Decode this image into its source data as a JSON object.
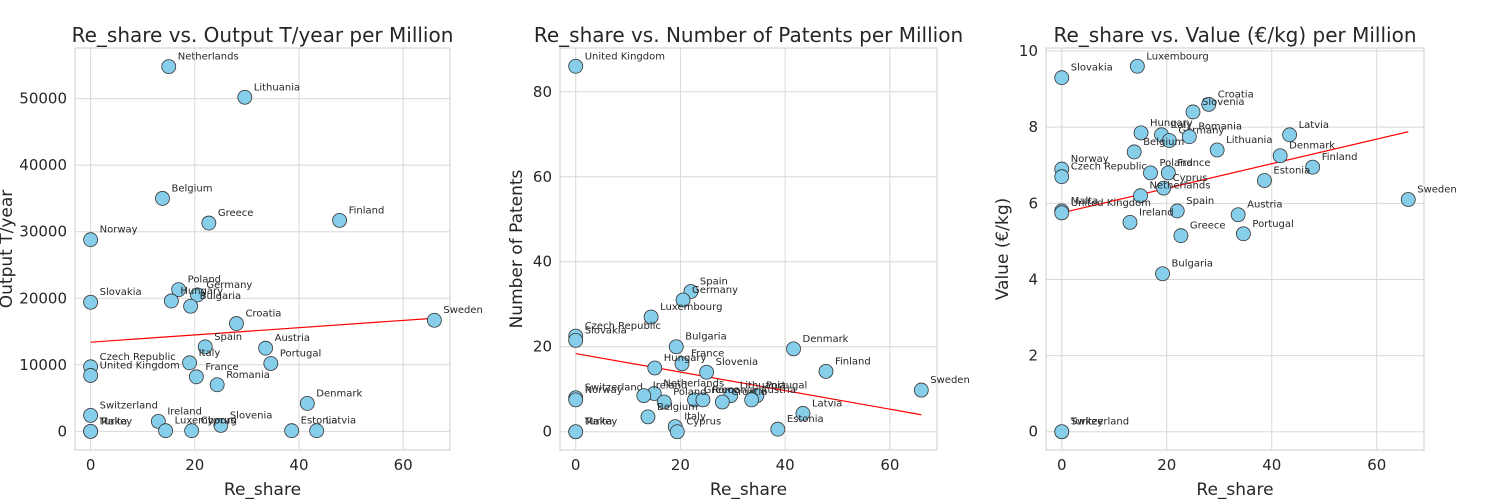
{
  "chart_data": [
    {
      "type": "scatter",
      "title": "Re_share vs. Output T/year per Million",
      "xlabel": "Re_share",
      "ylabel": "Output T/year",
      "xlim": [
        -3,
        69
      ],
      "ylim": [
        -2800,
        57600
      ],
      "xticks": [
        "0",
        "20",
        "40",
        "60"
      ],
      "xtick_values": [
        0,
        20,
        40,
        60
      ],
      "yticks": [
        "0",
        "10000",
        "20000",
        "30000",
        "40000",
        "50000"
      ],
      "ytick_values": [
        0,
        10000,
        20000,
        30000,
        40000,
        50000
      ],
      "grid": true,
      "marker_color": "#87ceeb",
      "trend_color": "#ff0000",
      "trend": [
        {
          "x": 0,
          "y": 13400
        },
        {
          "x": 66,
          "y": 17000
        }
      ],
      "points": [
        {
          "label": "Netherlands",
          "x": 15,
          "y": 54800
        },
        {
          "label": "Lithuania",
          "x": 29.6,
          "y": 50200
        },
        {
          "label": "Belgium",
          "x": 13.8,
          "y": 35000
        },
        {
          "label": "Greece",
          "x": 22.7,
          "y": 31300
        },
        {
          "label": "Finland",
          "x": 47.8,
          "y": 31700
        },
        {
          "label": "Norway",
          "x": 0,
          "y": 28800
        },
        {
          "label": "Slovakia",
          "x": 0,
          "y": 19400
        },
        {
          "label": "Poland",
          "x": 16.9,
          "y": 21300
        },
        {
          "label": "Germany",
          "x": 20.5,
          "y": 20500
        },
        {
          "label": "Hungary",
          "x": 15.5,
          "y": 19600
        },
        {
          "label": "Bulgaria",
          "x": 19.2,
          "y": 18800
        },
        {
          "label": "Sweden",
          "x": 66,
          "y": 16700
        },
        {
          "label": "Croatia",
          "x": 28,
          "y": 16200
        },
        {
          "label": "Spain",
          "x": 22,
          "y": 12700
        },
        {
          "label": "Austria",
          "x": 33.6,
          "y": 12500
        },
        {
          "label": "Italy",
          "x": 19,
          "y": 10300
        },
        {
          "label": "Portugal",
          "x": 34.6,
          "y": 10200
        },
        {
          "label": "Czech Republic",
          "x": 0,
          "y": 9700
        },
        {
          "label": "United Kingdom",
          "x": 0,
          "y": 8400
        },
        {
          "label": "France",
          "x": 20.3,
          "y": 8200
        },
        {
          "label": "Romania",
          "x": 24.3,
          "y": 7000
        },
        {
          "label": "Denmark",
          "x": 41.6,
          "y": 4200
        },
        {
          "label": "Switzerland",
          "x": 0,
          "y": 2400
        },
        {
          "label": "Ireland",
          "x": 13,
          "y": 1500
        },
        {
          "label": "Slovenia",
          "x": 25,
          "y": 900
        },
        {
          "label": "Luxembourg",
          "x": 14.4,
          "y": 100
        },
        {
          "label": "Cyprus",
          "x": 19.4,
          "y": 100
        },
        {
          "label": "Estonia",
          "x": 38.6,
          "y": 100
        },
        {
          "label": "Latvia",
          "x": 43.4,
          "y": 100
        },
        {
          "label": "Malta",
          "x": 0,
          "y": 0
        },
        {
          "label": "Turkey",
          "x": 0,
          "y": 0
        }
      ]
    },
    {
      "type": "scatter",
      "title": "Re_share vs. Number of Patents per Million",
      "xlabel": "Re_share",
      "ylabel": "Number of Patents",
      "xlim": [
        -3,
        69
      ],
      "ylim": [
        -4.3,
        90.3
      ],
      "xticks": [
        "0",
        "20",
        "40",
        "60"
      ],
      "xtick_values": [
        0,
        20,
        40,
        60
      ],
      "yticks": [
        "0",
        "20",
        "40",
        "60",
        "80"
      ],
      "ytick_values": [
        0,
        20,
        40,
        60,
        80
      ],
      "grid": true,
      "marker_color": "#87ceeb",
      "trend_color": "#ff0000",
      "trend": [
        {
          "x": 0,
          "y": 18.4
        },
        {
          "x": 66,
          "y": 4.0
        }
      ],
      "points": [
        {
          "label": "United Kingdom",
          "x": 0,
          "y": 86
        },
        {
          "label": "Spain",
          "x": 22,
          "y": 33
        },
        {
          "label": "Germany",
          "x": 20.5,
          "y": 31
        },
        {
          "label": "Luxembourg",
          "x": 14.4,
          "y": 27
        },
        {
          "label": "Czech Republic",
          "x": 0,
          "y": 22.5
        },
        {
          "label": "Slovakia",
          "x": 0,
          "y": 21.5
        },
        {
          "label": "Bulgaria",
          "x": 19.2,
          "y": 20
        },
        {
          "label": "Denmark",
          "x": 41.6,
          "y": 19.5
        },
        {
          "label": "France",
          "x": 20.3,
          "y": 16
        },
        {
          "label": "Hungary",
          "x": 15.1,
          "y": 15
        },
        {
          "label": "Slovenia",
          "x": 25,
          "y": 14
        },
        {
          "label": "Finland",
          "x": 47.8,
          "y": 14.2
        },
        {
          "label": "Sweden",
          "x": 66,
          "y": 9.8
        },
        {
          "label": "Switzerland",
          "x": 0,
          "y": 8
        },
        {
          "label": "Norway",
          "x": 0,
          "y": 7.5
        },
        {
          "label": "Netherlands",
          "x": 15,
          "y": 9
        },
        {
          "label": "Ireland",
          "x": 13,
          "y": 8.5
        },
        {
          "label": "Lithuania",
          "x": 29.6,
          "y": 8.5
        },
        {
          "label": "Portugal",
          "x": 34.6,
          "y": 8.5
        },
        {
          "label": "Greece",
          "x": 22.7,
          "y": 7.5
        },
        {
          "label": "Romania",
          "x": 24.3,
          "y": 7.5
        },
        {
          "label": "Croatia",
          "x": 28,
          "y": 7
        },
        {
          "label": "Austria",
          "x": 33.6,
          "y": 7.5
        },
        {
          "label": "Poland",
          "x": 16.9,
          "y": 7.0
        },
        {
          "label": "Belgium",
          "x": 13.8,
          "y": 3.5
        },
        {
          "label": "Italy",
          "x": 19,
          "y": 1.2
        },
        {
          "label": "Latvia",
          "x": 43.4,
          "y": 4.3
        },
        {
          "label": "Estonia",
          "x": 38.6,
          "y": 0.6
        },
        {
          "label": "Cyprus",
          "x": 19.4,
          "y": 0
        },
        {
          "label": "Malta",
          "x": 0,
          "y": 0
        },
        {
          "label": "Turkey",
          "x": 0,
          "y": 0
        }
      ]
    },
    {
      "type": "scatter",
      "title": "Re_share vs. Value (€/kg) per Million",
      "xlabel": "Re_share",
      "ylabel": "Value (€/kg)",
      "xlim": [
        -3,
        69
      ],
      "ylim": [
        -0.48,
        10.08
      ],
      "xticks": [
        "0",
        "20",
        "40",
        "60"
      ],
      "xtick_values": [
        0,
        20,
        40,
        60
      ],
      "yticks": [
        "0",
        "2",
        "4",
        "6",
        "8",
        "10"
      ],
      "ytick_values": [
        0,
        2,
        4,
        6,
        8,
        10
      ],
      "grid": true,
      "marker_color": "#87ceeb",
      "trend_color": "#ff0000",
      "trend": [
        {
          "x": 0,
          "y": 5.75
        },
        {
          "x": 66,
          "y": 7.88
        }
      ],
      "points": [
        {
          "label": "Slovakia",
          "x": 0,
          "y": 9.3
        },
        {
          "label": "Luxembourg",
          "x": 14.4,
          "y": 9.6
        },
        {
          "label": "Croatia",
          "x": 28,
          "y": 8.6
        },
        {
          "label": "Slovenia",
          "x": 25,
          "y": 8.4
        },
        {
          "label": "Hungary",
          "x": 15.1,
          "y": 7.85
        },
        {
          "label": "Italy",
          "x": 19,
          "y": 7.8
        },
        {
          "label": "Germany",
          "x": 20.5,
          "y": 7.65
        },
        {
          "label": "Romania",
          "x": 24.3,
          "y": 7.75
        },
        {
          "label": "Latvia",
          "x": 43.4,
          "y": 7.8
        },
        {
          "label": "Belgium",
          "x": 13.8,
          "y": 7.35
        },
        {
          "label": "Lithuania",
          "x": 29.6,
          "y": 7.4
        },
        {
          "label": "Denmark",
          "x": 41.6,
          "y": 7.25
        },
        {
          "label": "Norway",
          "x": 0,
          "y": 6.9
        },
        {
          "label": "Czech Republic",
          "x": 0,
          "y": 6.7
        },
        {
          "label": "Poland",
          "x": 16.9,
          "y": 6.8
        },
        {
          "label": "France",
          "x": 20.3,
          "y": 6.8
        },
        {
          "label": "Finland",
          "x": 47.8,
          "y": 6.95
        },
        {
          "label": "Estonia",
          "x": 38.6,
          "y": 6.6
        },
        {
          "label": "Cyprus",
          "x": 19.4,
          "y": 6.4
        },
        {
          "label": "Netherlands",
          "x": 15,
          "y": 6.2
        },
        {
          "label": "Sweden",
          "x": 66,
          "y": 6.1
        },
        {
          "label": "Malta",
          "x": 0,
          "y": 5.8
        },
        {
          "label": "United Kingdom",
          "x": 0,
          "y": 5.75
        },
        {
          "label": "Spain",
          "x": 22,
          "y": 5.8
        },
        {
          "label": "Austria",
          "x": 33.6,
          "y": 5.7
        },
        {
          "label": "Ireland",
          "x": 13,
          "y": 5.5
        },
        {
          "label": "Greece",
          "x": 22.7,
          "y": 5.15
        },
        {
          "label": "Portugal",
          "x": 34.6,
          "y": 5.2
        },
        {
          "label": "Bulgaria",
          "x": 19.2,
          "y": 4.15
        },
        {
          "label": "Switzerland",
          "x": 0,
          "y": 0
        },
        {
          "label": "Turkey",
          "x": 0,
          "y": 0
        }
      ]
    }
  ]
}
